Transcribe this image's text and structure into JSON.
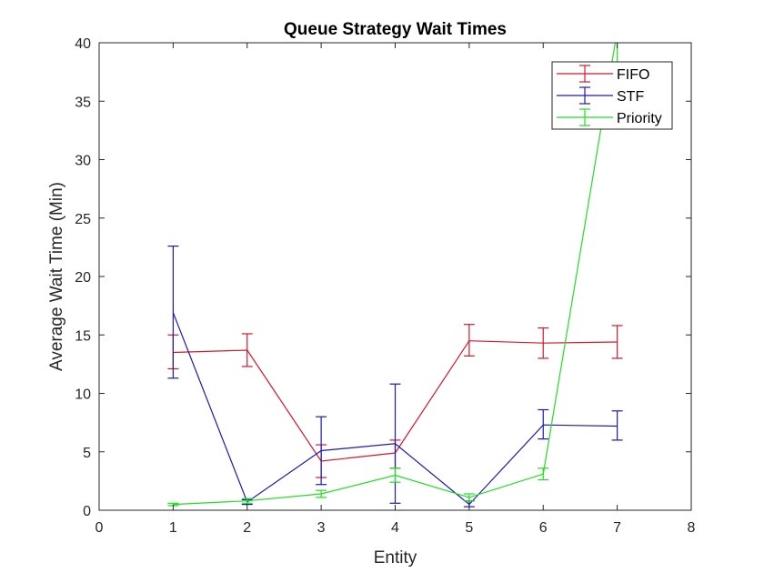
{
  "chart_data": {
    "type": "line",
    "title": "Queue Strategy Wait Times",
    "xlabel": "Entity",
    "ylabel": "Average Wait Time (Min)",
    "xlim": [
      0,
      8
    ],
    "ylim": [
      0,
      40
    ],
    "xticks": [
      "0",
      "1",
      "2",
      "3",
      "4",
      "5",
      "6",
      "7",
      "8"
    ],
    "yticks": [
      "0",
      "5",
      "10",
      "15",
      "20",
      "25",
      "30",
      "35",
      "40"
    ],
    "grid": false,
    "legend": "top-right",
    "error_bars": true,
    "x": [
      1,
      2,
      3,
      4,
      5,
      6,
      7
    ],
    "series": [
      {
        "name": "FIFO",
        "color": "#d11a2a",
        "values": [
          13.5,
          13.7,
          4.2,
          4.9,
          14.5,
          14.3,
          14.4
        ],
        "err_low": [
          12.1,
          12.3,
          2.8,
          3.6,
          13.2,
          13.0,
          13.0
        ],
        "err_high": [
          15.0,
          15.1,
          5.6,
          6.0,
          15.9,
          15.6,
          15.8
        ]
      },
      {
        "name": "STF",
        "color": "#1a1ab0",
        "values": [
          16.9,
          0.7,
          5.1,
          5.7,
          0.5,
          7.3,
          7.2
        ],
        "err_low": [
          11.3,
          0.5,
          2.2,
          0.6,
          0.3,
          6.1,
          6.0
        ],
        "err_high": [
          22.6,
          0.9,
          8.0,
          10.8,
          0.8,
          8.6,
          8.5
        ]
      },
      {
        "name": "Priority",
        "color": "#22dd22",
        "values": [
          0.5,
          0.8,
          1.4,
          3.0,
          1.1,
          3.1,
          41.0
        ],
        "err_low": [
          0.4,
          0.6,
          1.1,
          2.4,
          0.8,
          2.6,
          38.0
        ],
        "err_high": [
          0.6,
          1.0,
          1.7,
          3.6,
          1.4,
          3.6,
          44.0
        ]
      }
    ]
  }
}
